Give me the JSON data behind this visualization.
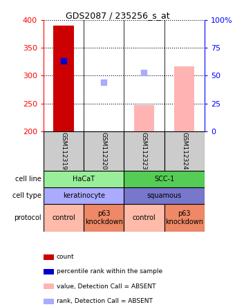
{
  "title": "GDS2087 / 235256_s_at",
  "samples": [
    "GSM112319",
    "GSM112320",
    "GSM112323",
    "GSM112324"
  ],
  "ylim": [
    200,
    400
  ],
  "yticks_left": [
    200,
    250,
    300,
    350,
    400
  ],
  "yticks_right": [
    0,
    25,
    50,
    75,
    100
  ],
  "ytick_right_labels": [
    "0",
    "25",
    "50",
    "75",
    "100%"
  ],
  "bar_present_values": [
    390,
    null,
    null,
    null
  ],
  "bar_present_color": "#cc0000",
  "bar_absent_values": [
    null,
    null,
    247,
    317
  ],
  "bar_absent_color": "#ffb3b3",
  "dot_present_values": [
    327,
    null,
    null,
    null
  ],
  "dot_present_color": "#0000cc",
  "dot_absent_values": [
    null,
    288,
    305,
    null
  ],
  "dot_absent_color": "#aaaaff",
  "bar_bottom": 200,
  "cell_line_row": [
    {
      "label": "HaCaT",
      "span": [
        0,
        1
      ],
      "color": "#99ee99"
    },
    {
      "label": "SCC-1",
      "span": [
        2,
        3
      ],
      "color": "#55cc55"
    }
  ],
  "cell_type_row": [
    {
      "label": "keratinocyte",
      "span": [
        0,
        1
      ],
      "color": "#aaaaff"
    },
    {
      "label": "squamous",
      "span": [
        2,
        3
      ],
      "color": "#7777cc"
    }
  ],
  "protocol_row": [
    {
      "label": "control",
      "span": [
        0,
        0
      ],
      "color": "#ffbbaa"
    },
    {
      "label": "p63\nknockdown",
      "span": [
        1,
        1
      ],
      "color": "#ee8866"
    },
    {
      "label": "control",
      "span": [
        2,
        2
      ],
      "color": "#ffbbaa"
    },
    {
      "label": "p63\nknockdown",
      "span": [
        3,
        3
      ],
      "color": "#ee8866"
    }
  ],
  "sample_box_color": "#cccccc",
  "bg_color": "#ffffff",
  "legend_items": [
    {
      "label": "count",
      "color": "#cc0000"
    },
    {
      "label": "percentile rank within the sample",
      "color": "#0000cc"
    },
    {
      "label": "value, Detection Call = ABSENT",
      "color": "#ffb3b3"
    },
    {
      "label": "rank, Detection Call = ABSENT",
      "color": "#aaaaff"
    }
  ],
  "row_labels": [
    "cell line",
    "cell type",
    "protocol"
  ],
  "arrow_color": "#aaaaaa"
}
